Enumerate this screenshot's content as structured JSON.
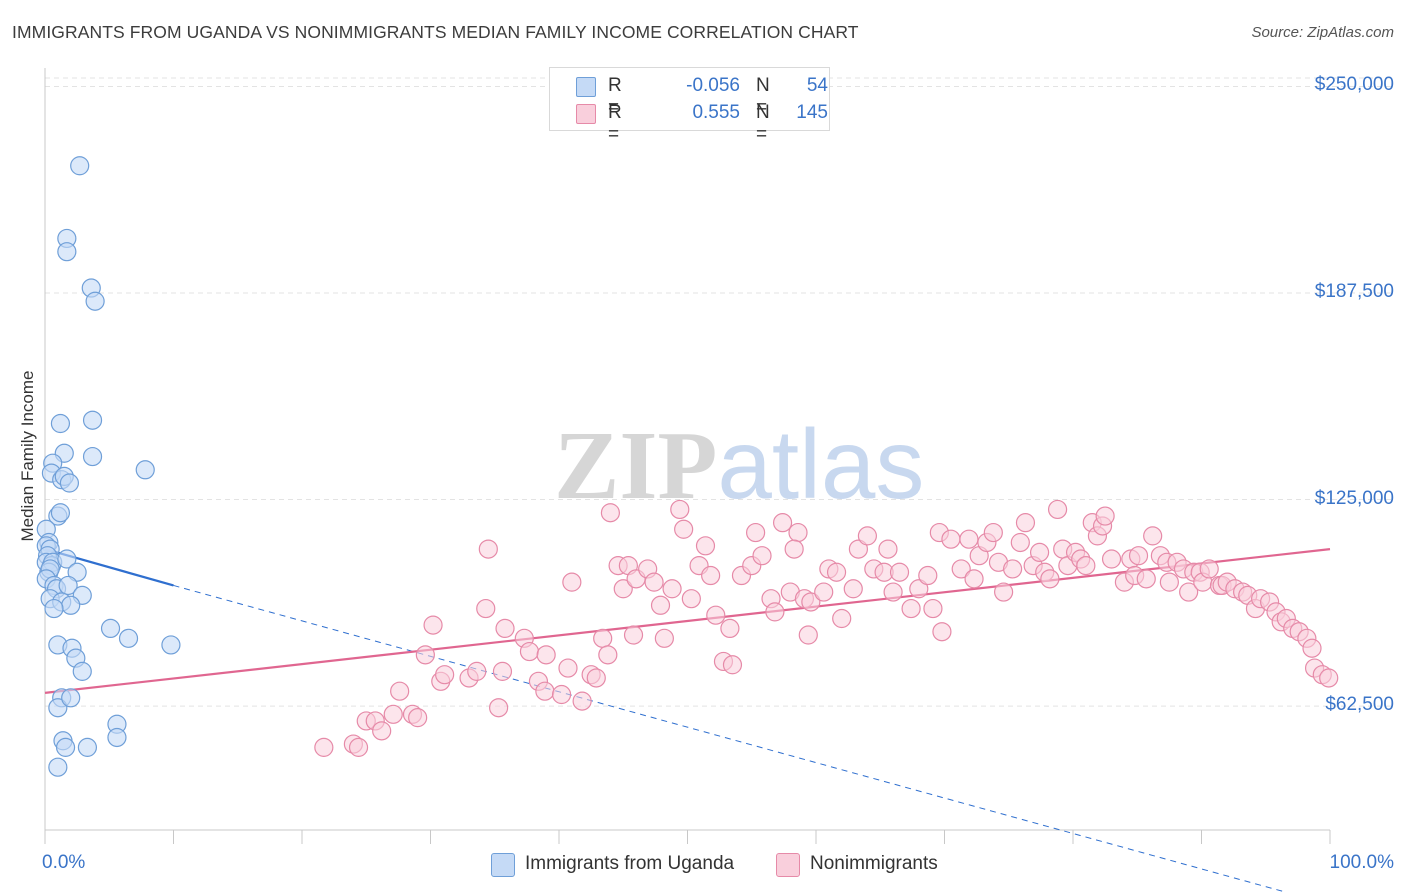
{
  "title": "IMMIGRANTS FROM UGANDA VS NONIMMIGRANTS MEDIAN FAMILY INCOME CORRELATION CHART",
  "source": "Source: ZipAtlas.com",
  "watermark": {
    "zip": "ZIP",
    "atlas": "atlas"
  },
  "legend": {
    "r_label": "R =",
    "n_label": "N =",
    "rows": [
      {
        "r": "-0.056",
        "n": "54"
      },
      {
        "r": "0.555",
        "n": "145"
      }
    ]
  },
  "colors": {
    "uganda_fill": "#c5daf6",
    "uganda_stroke": "#6f9fd8",
    "uganda_line": "#2f6fcf",
    "nonimm_fill": "#f9cfdc",
    "nonimm_stroke": "#e68aa8",
    "nonimm_line": "#e06690",
    "tick_text": "#3a74c8",
    "grid": "#e3e3e3"
  },
  "chart_data": {
    "type": "scatter",
    "title": "IMMIGRANTS FROM UGANDA VS NONIMMIGRANTS MEDIAN FAMILY INCOME CORRELATION CHART",
    "xlabel": "",
    "ylabel": "Median Family Income",
    "xlim": [
      0,
      100
    ],
    "ylim": [
      25000,
      258000
    ],
    "x_tick_labels": [
      "0.0%",
      "100.0%"
    ],
    "y_ticks": [
      62500,
      125000,
      187500,
      250000
    ],
    "y_tick_labels": [
      "$62,500",
      "$125,000",
      "$187,500",
      "$250,000"
    ],
    "grid": true,
    "legend_position": "top-center",
    "series": [
      {
        "name": "Immigrants from Uganda",
        "trend": {
          "x": [
            0,
            10
          ],
          "y": [
            110000,
            99000
          ],
          "dashed_extension_to": [
            100,
            2500
          ]
        },
        "points": [
          [
            2.7,
            226000
          ],
          [
            1.7,
            204000
          ],
          [
            1.7,
            200000
          ],
          [
            3.6,
            189000
          ],
          [
            3.9,
            185000
          ],
          [
            1.2,
            148000
          ],
          [
            3.7,
            149000
          ],
          [
            1.5,
            139000
          ],
          [
            3.7,
            138000
          ],
          [
            0.6,
            136000
          ],
          [
            0.5,
            133000
          ],
          [
            1.3,
            131000
          ],
          [
            1.5,
            132000
          ],
          [
            1.9,
            130000
          ],
          [
            7.8,
            134000
          ],
          [
            1.0,
            120000
          ],
          [
            1.2,
            121000
          ],
          [
            0.1,
            116000
          ],
          [
            0.3,
            112000
          ],
          [
            0.1,
            111000
          ],
          [
            0.4,
            110000
          ],
          [
            0.2,
            108000
          ],
          [
            0.1,
            106000
          ],
          [
            0.5,
            105000
          ],
          [
            0.6,
            106000
          ],
          [
            1.7,
            107000
          ],
          [
            0.3,
            103000
          ],
          [
            0.4,
            104000
          ],
          [
            2.5,
            103000
          ],
          [
            0.1,
            101000
          ],
          [
            0.7,
            99000
          ],
          [
            0.9,
            98000
          ],
          [
            1.8,
            99000
          ],
          [
            2.9,
            96000
          ],
          [
            0.4,
            95000
          ],
          [
            1.3,
            94000
          ],
          [
            2.0,
            93000
          ],
          [
            0.7,
            92000
          ],
          [
            5.1,
            86000
          ],
          [
            6.5,
            83000
          ],
          [
            9.8,
            81000
          ],
          [
            1.0,
            81000
          ],
          [
            2.1,
            80000
          ],
          [
            2.4,
            77000
          ],
          [
            2.9,
            73000
          ],
          [
            1.3,
            65000
          ],
          [
            1.0,
            62000
          ],
          [
            2.0,
            65000
          ],
          [
            5.6,
            57000
          ],
          [
            5.6,
            53000
          ],
          [
            1.4,
            52000
          ],
          [
            1.6,
            50000
          ],
          [
            3.3,
            50000
          ],
          [
            1.0,
            44000
          ]
        ]
      },
      {
        "name": "Nonimmigrants",
        "trend": {
          "x": [
            0,
            100
          ],
          "y": [
            66500,
            110000
          ]
        },
        "points": [
          [
            21.7,
            50000
          ],
          [
            24.0,
            51000
          ],
          [
            24.4,
            50000
          ],
          [
            25.0,
            58000
          ],
          [
            25.7,
            58000
          ],
          [
            26.2,
            55000
          ],
          [
            27.1,
            60000
          ],
          [
            27.6,
            67000
          ],
          [
            28.6,
            60000
          ],
          [
            29.0,
            59000
          ],
          [
            29.6,
            78000
          ],
          [
            30.2,
            87000
          ],
          [
            30.8,
            70000
          ],
          [
            31.1,
            72000
          ],
          [
            33.0,
            71000
          ],
          [
            33.6,
            73000
          ],
          [
            34.3,
            92000
          ],
          [
            35.6,
            73000
          ],
          [
            35.8,
            86000
          ],
          [
            34.5,
            110000
          ],
          [
            35.3,
            62000
          ],
          [
            37.3,
            83000
          ],
          [
            37.7,
            79000
          ],
          [
            38.4,
            70000
          ],
          [
            38.9,
            67000
          ],
          [
            39.0,
            78000
          ],
          [
            40.2,
            66000
          ],
          [
            40.7,
            74000
          ],
          [
            41.0,
            100000
          ],
          [
            41.8,
            64000
          ],
          [
            42.5,
            72000
          ],
          [
            42.9,
            71000
          ],
          [
            43.4,
            83000
          ],
          [
            43.8,
            78000
          ],
          [
            44.0,
            121000
          ],
          [
            44.6,
            105000
          ],
          [
            45.0,
            98000
          ],
          [
            45.4,
            105000
          ],
          [
            45.8,
            84000
          ],
          [
            46.0,
            101000
          ],
          [
            46.9,
            104000
          ],
          [
            47.4,
            100000
          ],
          [
            47.9,
            93000
          ],
          [
            48.2,
            83000
          ],
          [
            48.8,
            98000
          ],
          [
            49.4,
            122000
          ],
          [
            49.7,
            116000
          ],
          [
            50.3,
            95000
          ],
          [
            50.9,
            105000
          ],
          [
            51.4,
            111000
          ],
          [
            51.8,
            102000
          ],
          [
            52.2,
            90000
          ],
          [
            52.8,
            76000
          ],
          [
            53.3,
            86000
          ],
          [
            53.5,
            75000
          ],
          [
            54.2,
            102000
          ],
          [
            55.0,
            105000
          ],
          [
            55.3,
            115000
          ],
          [
            55.8,
            108000
          ],
          [
            56.5,
            95000
          ],
          [
            56.8,
            91000
          ],
          [
            57.4,
            118000
          ],
          [
            58.0,
            97000
          ],
          [
            58.6,
            115000
          ],
          [
            58.3,
            110000
          ],
          [
            59.1,
            95000
          ],
          [
            59.4,
            84000
          ],
          [
            59.6,
            94000
          ],
          [
            60.6,
            97000
          ],
          [
            61.0,
            104000
          ],
          [
            61.6,
            103000
          ],
          [
            62.0,
            89000
          ],
          [
            62.9,
            98000
          ],
          [
            63.3,
            110000
          ],
          [
            64.0,
            114000
          ],
          [
            64.5,
            104000
          ],
          [
            65.3,
            103000
          ],
          [
            65.6,
            110000
          ],
          [
            66.0,
            97000
          ],
          [
            66.5,
            103000
          ],
          [
            67.4,
            92000
          ],
          [
            68.0,
            98000
          ],
          [
            68.7,
            102000
          ],
          [
            69.1,
            92000
          ],
          [
            69.6,
            115000
          ],
          [
            69.8,
            85000
          ],
          [
            70.5,
            113000
          ],
          [
            71.3,
            104000
          ],
          [
            71.9,
            113000
          ],
          [
            72.3,
            101000
          ],
          [
            72.7,
            108000
          ],
          [
            73.3,
            112000
          ],
          [
            73.8,
            115000
          ],
          [
            74.2,
            106000
          ],
          [
            74.6,
            97000
          ],
          [
            75.3,
            104000
          ],
          [
            75.9,
            112000
          ],
          [
            76.3,
            118000
          ],
          [
            76.9,
            105000
          ],
          [
            77.4,
            109000
          ],
          [
            77.8,
            103000
          ],
          [
            78.2,
            101000
          ],
          [
            78.8,
            122000
          ],
          [
            79.2,
            110000
          ],
          [
            79.6,
            105000
          ],
          [
            80.2,
            109000
          ],
          [
            80.6,
            107000
          ],
          [
            81.0,
            105000
          ],
          [
            81.5,
            118000
          ],
          [
            81.9,
            114000
          ],
          [
            82.3,
            117000
          ],
          [
            82.5,
            120000
          ],
          [
            83.0,
            107000
          ],
          [
            84.0,
            100000
          ],
          [
            84.5,
            107000
          ],
          [
            84.8,
            102000
          ],
          [
            85.1,
            108000
          ],
          [
            85.7,
            101000
          ],
          [
            86.2,
            114000
          ],
          [
            86.8,
            108000
          ],
          [
            87.3,
            106000
          ],
          [
            87.5,
            100000
          ],
          [
            88.1,
            106000
          ],
          [
            88.6,
            104000
          ],
          [
            89.0,
            97000
          ],
          [
            89.4,
            103000
          ],
          [
            89.9,
            103000
          ],
          [
            90.1,
            100000
          ],
          [
            90.6,
            104000
          ],
          [
            91.4,
            99000
          ],
          [
            91.6,
            99000
          ],
          [
            92.0,
            100000
          ],
          [
            92.6,
            98000
          ],
          [
            93.2,
            97000
          ],
          [
            93.6,
            96000
          ],
          [
            94.2,
            92000
          ],
          [
            94.6,
            95000
          ],
          [
            95.3,
            94000
          ],
          [
            95.8,
            91000
          ],
          [
            96.2,
            88000
          ],
          [
            96.6,
            89000
          ],
          [
            97.1,
            86000
          ],
          [
            97.6,
            85000
          ],
          [
            98.2,
            83000
          ],
          [
            98.6,
            80000
          ],
          [
            98.8,
            74000
          ],
          [
            99.4,
            72000
          ],
          [
            99.9,
            71000
          ]
        ]
      }
    ]
  },
  "bottom_legend": [
    "Immigrants from Uganda",
    "Nonimmigrants"
  ]
}
